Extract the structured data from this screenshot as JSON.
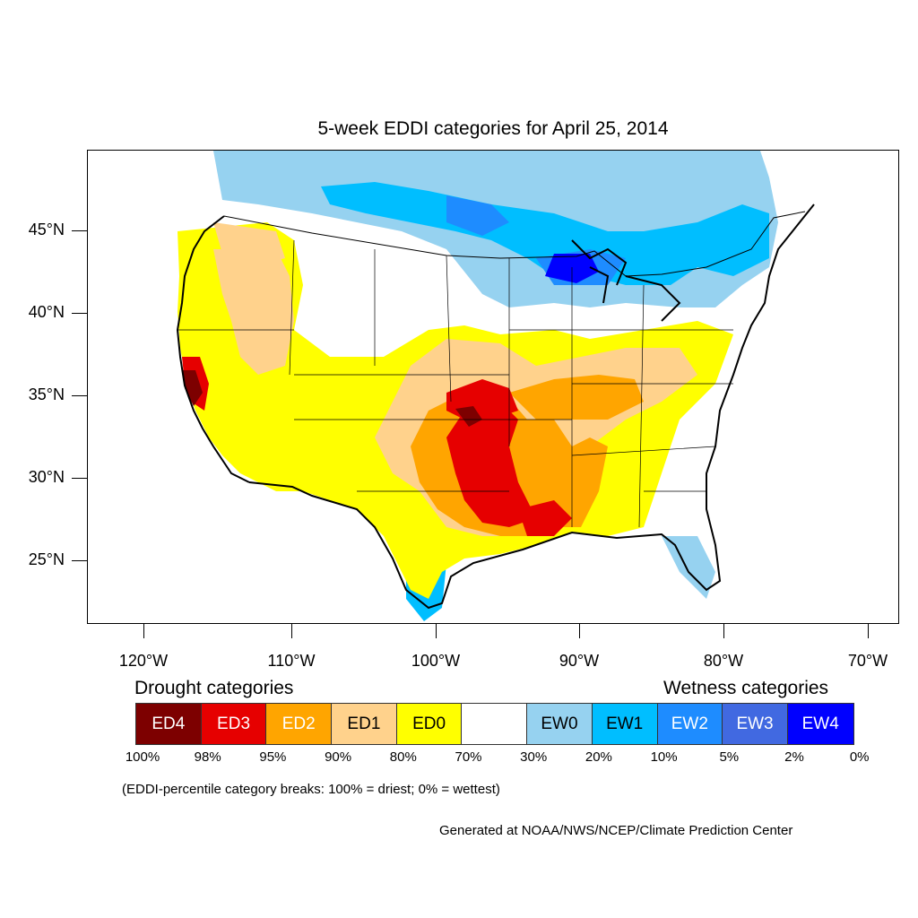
{
  "title": "5-week EDDI categories for April 25, 2014",
  "latitude_labels": [
    "45°N",
    "40°N",
    "35°N",
    "30°N",
    "25°N"
  ],
  "longitude_labels": [
    "120°W",
    "110°W",
    "100°W",
    "90°W",
    "80°W",
    "70°W"
  ],
  "legend": {
    "drought_heading": "Drought categories",
    "wetness_heading": "Wetness categories",
    "categories": [
      {
        "label": "ED4",
        "color": "#7d0000",
        "text_color": "#ffffff"
      },
      {
        "label": "ED3",
        "color": "#e60000",
        "text_color": "#ffffff"
      },
      {
        "label": "ED2",
        "color": "#ffa500",
        "text_color": "#ffffff"
      },
      {
        "label": "ED1",
        "color": "#ffd28c",
        "text_color": "#000000"
      },
      {
        "label": "ED0",
        "color": "#ffff00",
        "text_color": "#000000"
      },
      {
        "label": "",
        "color": "#ffffff",
        "text_color": "#000000"
      },
      {
        "label": "EW0",
        "color": "#96d2f0",
        "text_color": "#000000"
      },
      {
        "label": "EW1",
        "color": "#00beff",
        "text_color": "#000000"
      },
      {
        "label": "EW2",
        "color": "#1e8cff",
        "text_color": "#ffffff"
      },
      {
        "label": "EW3",
        "color": "#4169e1",
        "text_color": "#ffffff"
      },
      {
        "label": "EW4",
        "color": "#0000ff",
        "text_color": "#ffffff"
      }
    ],
    "percentile_breaks": [
      "100%",
      "98%",
      "95%",
      "90%",
      "80%",
      "70%",
      "30%",
      "20%",
      "10%",
      "5%",
      "2%",
      "0%"
    ]
  },
  "breaks_note": "(EDDI-percentile category breaks: 100% = driest; 0% = wettest)",
  "credit": "Generated at NOAA/NWS/NCEP/Climate Prediction Center"
}
